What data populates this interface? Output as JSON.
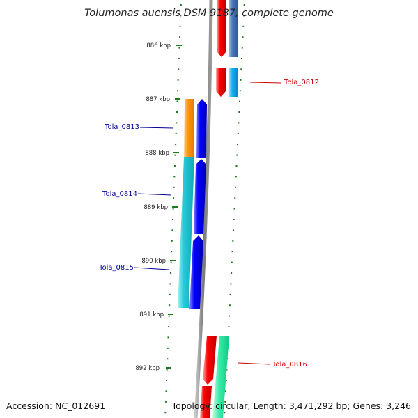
{
  "title": "Tolumonas auensis DSM 9187, complete genome",
  "footer": {
    "accession": "Accession: NC_012691",
    "summary": "Topology: circular; Length: 3,471,292 bp; Genes: 3,246"
  },
  "ruler": {
    "unit": "kbp",
    "ticks": [
      {
        "label": "886 kbp",
        "position_kbp": 886
      },
      {
        "label": "887 kbp",
        "position_kbp": 887
      },
      {
        "label": "888 kbp",
        "position_kbp": 888
      },
      {
        "label": "889 kbp",
        "position_kbp": 889
      },
      {
        "label": "890 kbp",
        "position_kbp": 890
      },
      {
        "label": "891 kbp",
        "position_kbp": 891
      },
      {
        "label": "892 kbp",
        "position_kbp": 892
      }
    ]
  },
  "genes": [
    {
      "label": "Tola_0812",
      "strand": "+",
      "label_color": "#cc0000"
    },
    {
      "label": "Tola_0813",
      "strand": "-",
      "label_color": "#000099"
    },
    {
      "label": "Tola_0814",
      "strand": "-",
      "label_color": "#000099"
    },
    {
      "label": "Tola_0815",
      "strand": "-",
      "label_color": "#000099"
    },
    {
      "label": "Tola_0816",
      "strand": "+",
      "label_color": "#cc0000"
    }
  ],
  "colors": {
    "backbone": "#8a8a8a",
    "forward_cds": "#ee0000",
    "reverse_cds": "#0000ee",
    "tick": "#1a7a1a",
    "feature_orange": "#ff9900",
    "feature_cyan": "#22c8d8",
    "feature_steelblue": "#4a78b8",
    "feature_skyblue": "#18a8f0",
    "feature_mint": "#30e8a0"
  }
}
